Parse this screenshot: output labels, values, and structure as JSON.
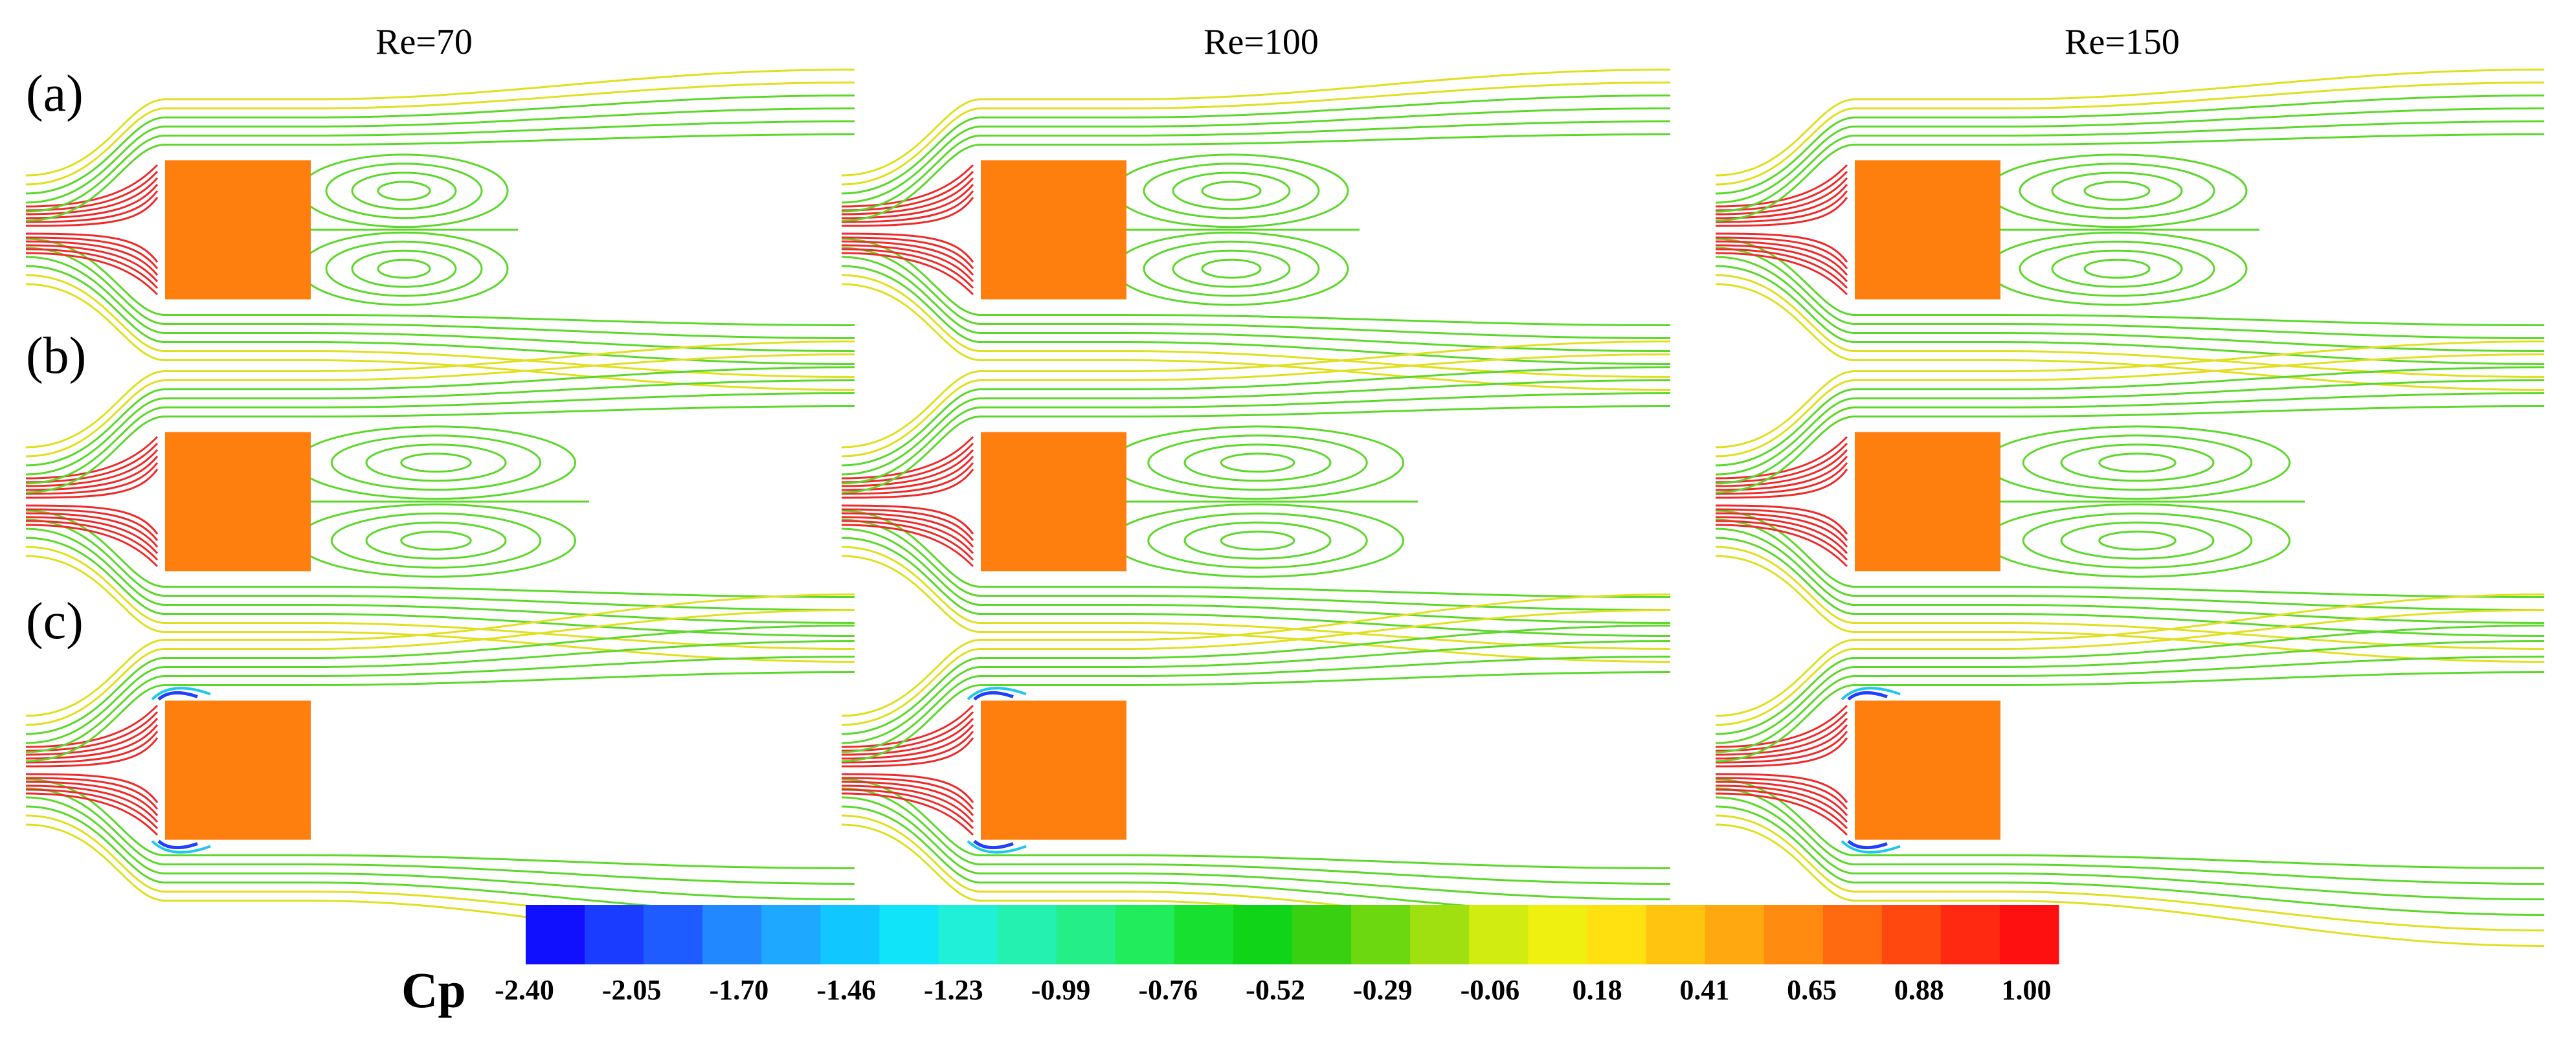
{
  "columns": [
    {
      "label": "Re=70"
    },
    {
      "label": "Re=100"
    },
    {
      "label": "Re=150"
    }
  ],
  "rows": [
    {
      "label": "(a)"
    },
    {
      "label": "(b)"
    },
    {
      "label": "(c)"
    }
  ],
  "colorbar": {
    "title": "Cp",
    "tick_labels": [
      "-2.40",
      "-2.05",
      "-1.70",
      "-1.46",
      "-1.23",
      "-0.99",
      "-0.76",
      "-0.52",
      "-0.29",
      "-0.06",
      "0.18",
      "0.41",
      "0.65",
      "0.88",
      "1.00"
    ],
    "colors": [
      "#1010ff",
      "#1a3cff",
      "#1f5cff",
      "#2288ff",
      "#1fa8ff",
      "#10c8ff",
      "#10e4f8",
      "#20f0d8",
      "#24f0b0",
      "#24ee88",
      "#20ec5c",
      "#18e030",
      "#10d418",
      "#38d010",
      "#6cd810",
      "#a0e010",
      "#d0ec10",
      "#f0f010",
      "#ffe010",
      "#ffc410",
      "#ffa810",
      "#ff8c10",
      "#ff6a10",
      "#ff4810",
      "#ff2810",
      "#ff1010"
    ]
  },
  "style": {
    "cylinder": "#ff7f0e",
    "stream_red": "#f02a2a",
    "stream_green": "#5cd82a",
    "stream_yellow": "#e0e020",
    "stream_blue": "#2040ff",
    "stream_cyan": "#20c8e8"
  }
}
